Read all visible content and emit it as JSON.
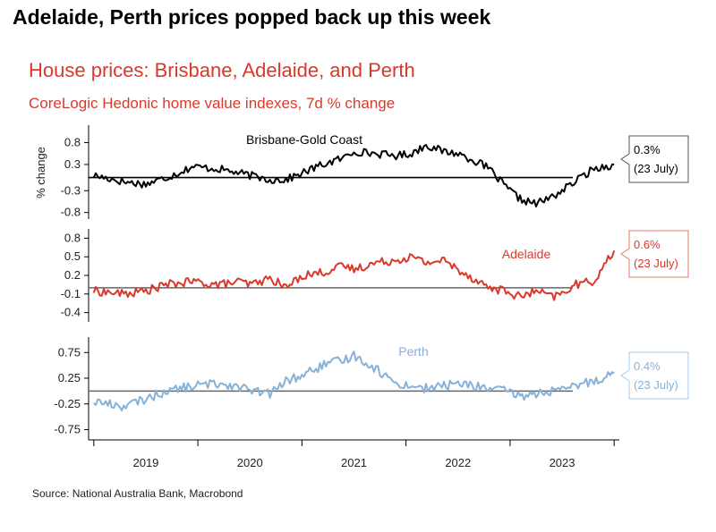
{
  "headline": "Adelaide, Perth prices popped back up this week",
  "title": "House prices: Brisbane, Adelaide, and Perth",
  "subtitle": "CoreLogic Hedonic home value indexes, 7d % change",
  "source": "Source: National Australia Bank, Macrobond",
  "colors": {
    "brisbane": "#000000",
    "adelaide": "#d9392b",
    "perth": "#86b1d8",
    "title": "#d9392b"
  },
  "chart_data": {
    "type": "line",
    "ylabel": "% change",
    "x_axis": {
      "domain": [
        2018.45,
        2023.55
      ],
      "tick_labels": [
        "2019",
        "2020",
        "2021",
        "2022",
        "2023"
      ],
      "tick_label_positions": [
        2019.0,
        2020.0,
        2021.0,
        2022.0,
        2023.0
      ],
      "year_boundaries": [
        2018.5,
        2019.5,
        2020.5,
        2021.5,
        2022.5,
        2023.5
      ]
    },
    "panels": [
      {
        "name": "Brisbane-Gold Coast",
        "color_key": "brisbane",
        "ylim": [
          -0.95,
          1.2
        ],
        "yticks": [
          0.8,
          0.3,
          -0.3,
          -0.8
        ],
        "ytick_labels": [
          "0.8",
          "0.3",
          "-0.3",
          "-0.8"
        ],
        "zero_line": 0,
        "callout": {
          "value": "0.3%",
          "date": "(23 July)"
        },
        "series_x": [
          2018.5,
          2018.8,
          2019.0,
          2019.2,
          2019.45,
          2019.7,
          2019.9,
          2020.0,
          2020.2,
          2020.35,
          2020.5,
          2020.7,
          2020.9,
          2021.0,
          2021.2,
          2021.4,
          2021.55,
          2021.7,
          2021.85,
          2022.0,
          2022.15,
          2022.3,
          2022.45,
          2022.6,
          2022.75,
          2022.9,
          2023.0,
          2023.12,
          2023.3,
          2023.5
        ],
        "series_y": [
          0.05,
          -0.1,
          -0.15,
          0.0,
          0.25,
          0.2,
          0.1,
          0.05,
          -0.05,
          -0.05,
          0.1,
          0.3,
          0.45,
          0.6,
          0.55,
          0.5,
          0.55,
          0.75,
          0.6,
          0.55,
          0.4,
          0.2,
          -0.2,
          -0.5,
          -0.6,
          -0.45,
          -0.3,
          -0.1,
          0.2,
          0.3
        ]
      },
      {
        "name": "Adelaide",
        "color_key": "adelaide",
        "ylim": [
          -0.55,
          0.95
        ],
        "yticks": [
          0.8,
          0.5,
          0.2,
          -0.1,
          -0.4
        ],
        "ytick_labels": [
          "0.8",
          "0.5",
          "0.2",
          "-0.1",
          "-0.4"
        ],
        "zero_line": 0,
        "callout": {
          "value": "0.6%",
          "date": "(23 July)"
        },
        "series_x": [
          2018.5,
          2018.8,
          2019.0,
          2019.2,
          2019.45,
          2019.7,
          2019.9,
          2020.0,
          2020.2,
          2020.35,
          2020.5,
          2020.7,
          2020.9,
          2021.0,
          2021.2,
          2021.4,
          2021.55,
          2021.7,
          2021.85,
          2022.0,
          2022.15,
          2022.3,
          2022.45,
          2022.6,
          2022.75,
          2022.9,
          2023.0,
          2023.12,
          2023.3,
          2023.5
        ],
        "series_y": [
          -0.05,
          -0.1,
          -0.05,
          0.05,
          0.1,
          0.05,
          0.1,
          0.05,
          0.15,
          0.0,
          0.2,
          0.25,
          0.35,
          0.3,
          0.4,
          0.45,
          0.5,
          0.4,
          0.45,
          0.3,
          0.15,
          0.0,
          -0.05,
          -0.15,
          -0.05,
          -0.15,
          -0.1,
          0.05,
          0.1,
          0.6
        ]
      },
      {
        "name": "Perth",
        "color_key": "perth",
        "ylim": [
          -0.95,
          1.05
        ],
        "yticks": [
          0.75,
          0.25,
          -0.25,
          -0.75
        ],
        "ytick_labels": [
          "0.75",
          "0.25",
          "-0.25",
          "-0.75"
        ],
        "zero_line": 0,
        "callout": {
          "value": "0.4%",
          "date": "(23 July)"
        },
        "series_x": [
          2018.5,
          2018.8,
          2019.0,
          2019.2,
          2019.45,
          2019.7,
          2019.9,
          2020.0,
          2020.2,
          2020.35,
          2020.5,
          2020.7,
          2020.9,
          2021.0,
          2021.2,
          2021.4,
          2021.55,
          2021.7,
          2021.85,
          2022.0,
          2022.15,
          2022.3,
          2022.45,
          2022.6,
          2022.75,
          2022.9,
          2023.0,
          2023.12,
          2023.3,
          2023.5
        ],
        "series_y": [
          -0.2,
          -0.3,
          -0.15,
          0.0,
          0.1,
          0.15,
          0.1,
          0.0,
          -0.05,
          0.2,
          0.3,
          0.5,
          0.6,
          0.7,
          0.45,
          0.15,
          0.1,
          0.05,
          0.1,
          0.15,
          0.1,
          0.05,
          0.0,
          -0.1,
          -0.05,
          0.0,
          0.0,
          0.1,
          0.2,
          0.35
        ]
      }
    ]
  }
}
